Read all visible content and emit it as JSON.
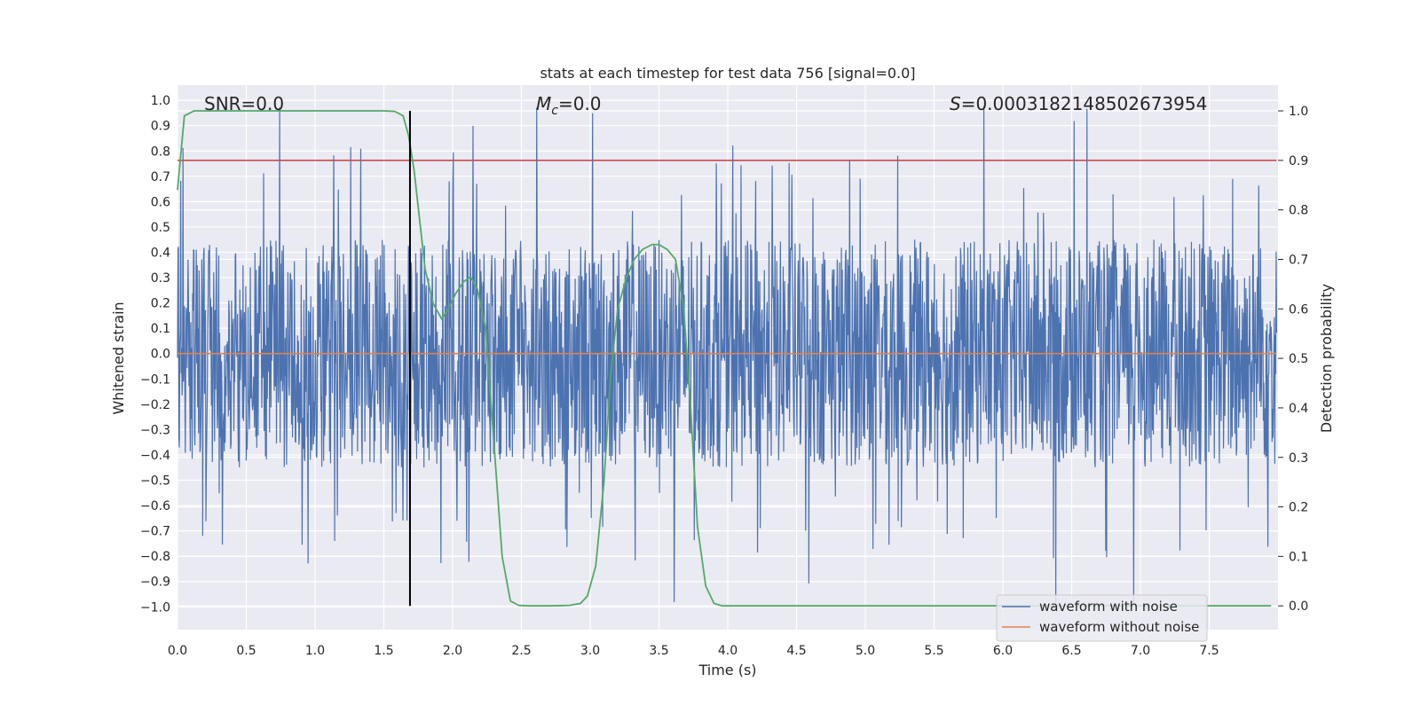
{
  "chart_data": {
    "type": "line",
    "title": "stats at each timestep for test data 756 [signal=0.0]",
    "xlabel": "Time (s)",
    "ylabel_left": "Whitened strain",
    "ylabel_right": "Detection probability",
    "xlim": [
      0.0,
      8.0
    ],
    "ylim_left": [
      -1.09,
      1.06
    ],
    "ylim_right": [
      -0.048,
      1.052
    ],
    "x_ticks": [
      0.0,
      0.5,
      1.0,
      1.5,
      2.0,
      2.5,
      3.0,
      3.5,
      4.0,
      4.5,
      5.0,
      5.5,
      6.0,
      6.5,
      7.0,
      7.5
    ],
    "x_tick_labels": [
      "0.0",
      "0.5",
      "1.0",
      "1.5",
      "2.0",
      "2.5",
      "3.0",
      "3.5",
      "4.0",
      "4.5",
      "5.0",
      "5.5",
      "6.0",
      "6.5",
      "7.0",
      "7.5"
    ],
    "y_left_ticks": [
      1.0,
      0.9,
      0.8,
      0.7,
      0.6,
      0.5,
      0.4,
      0.3,
      0.2,
      0.1,
      0.0,
      -0.1,
      -0.2,
      -0.3,
      -0.4,
      -0.5,
      -0.6,
      -0.7,
      -0.8,
      -0.9,
      -1.0
    ],
    "y_left_tick_labels": [
      "1.0",
      "0.9",
      "0.8",
      "0.7",
      "0.6",
      "0.5",
      "0.4",
      "0.3",
      "0.2",
      "0.1",
      "0.0",
      "−0.1",
      "−0.2",
      "−0.3",
      "−0.4",
      "−0.5",
      "−0.6",
      "−0.7",
      "−0.8",
      "−0.9",
      "−1.0"
    ],
    "y_right_ticks": [
      1.0,
      0.9,
      0.8,
      0.7,
      0.6,
      0.5,
      0.4,
      0.3,
      0.2,
      0.1,
      0.0
    ],
    "y_right_tick_labels": [
      "1.0",
      "0.9",
      "0.8",
      "0.7",
      "0.6",
      "0.5",
      "0.4",
      "0.3",
      "0.2",
      "0.1",
      "0.0"
    ],
    "annotations": {
      "snr": "SNR=0.0",
      "mc_symbol": "M",
      "mc_subscript": "c",
      "mc_value": "=0.0",
      "s_symbol": "S",
      "s_value": "=0.0003182148502673954"
    },
    "legend": {
      "position": "lower-right",
      "entries": [
        {
          "label": "waveform with noise",
          "color": "#4c72b0"
        },
        {
          "label": "waveform without noise",
          "color": "#dd8452"
        }
      ]
    },
    "series": [
      {
        "name": "waveform with noise",
        "axis": "left",
        "color": "#4c72b0",
        "kind": "noise",
        "x_range": [
          0.0,
          7.99
        ],
        "typical_envelope": [
          -0.45,
          0.45
        ],
        "max": 0.98,
        "min": -1.0
      },
      {
        "name": "waveform without noise",
        "axis": "left",
        "color": "#dd8452",
        "x": [
          0.0,
          7.99
        ],
        "y": [
          0.0,
          0.0
        ]
      },
      {
        "name": "detection probability",
        "axis": "right",
        "color": "#55a868",
        "x": [
          0.0,
          0.05,
          0.12,
          0.3,
          0.6,
          0.9,
          1.2,
          1.4,
          1.5,
          1.58,
          1.64,
          1.68,
          1.72,
          1.76,
          1.8,
          1.86,
          1.92,
          1.97,
          2.02,
          2.08,
          2.13,
          2.18,
          2.24,
          2.3,
          2.36,
          2.42,
          2.48,
          2.55,
          2.7,
          2.85,
          2.93,
          2.98,
          3.04,
          3.1,
          3.15,
          3.2,
          3.26,
          3.32,
          3.38,
          3.45,
          3.5,
          3.56,
          3.62,
          3.68,
          3.73,
          3.78,
          3.84,
          3.9,
          3.96,
          4.1,
          5.0,
          6.0,
          7.0,
          7.95
        ],
        "y": [
          0.84,
          0.99,
          1.0,
          1.0,
          1.0,
          1.0,
          1.0,
          1.0,
          1.0,
          0.999,
          0.99,
          0.95,
          0.88,
          0.78,
          0.68,
          0.61,
          0.58,
          0.6,
          0.63,
          0.655,
          0.665,
          0.64,
          0.56,
          0.33,
          0.1,
          0.01,
          0.001,
          0.0,
          0.0,
          0.001,
          0.005,
          0.02,
          0.08,
          0.25,
          0.47,
          0.6,
          0.66,
          0.7,
          0.72,
          0.73,
          0.73,
          0.72,
          0.7,
          0.6,
          0.4,
          0.16,
          0.04,
          0.005,
          0.0,
          0.0,
          0.0,
          0.0,
          0.0,
          0.0
        ]
      },
      {
        "name": "threshold",
        "axis": "right",
        "color": "#c44e52",
        "x": [
          0.0,
          7.99
        ],
        "y": [
          0.9,
          0.9
        ]
      },
      {
        "name": "detection time marker",
        "axis": "right",
        "color": "#000000",
        "x": [
          1.69,
          1.69
        ],
        "y": [
          0.0,
          1.0
        ]
      }
    ]
  }
}
